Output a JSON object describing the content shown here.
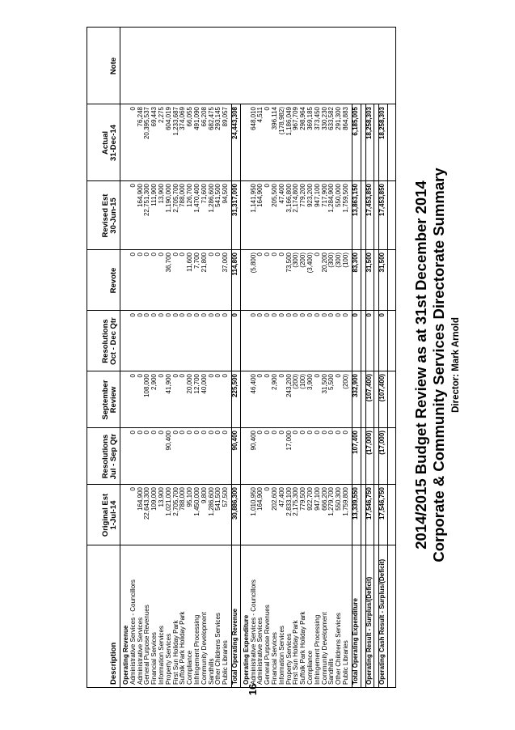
{
  "page_number": "16",
  "header": {
    "title_line1": "2014/2015 Budget Review as at 31st December 2014",
    "title_line2": "Corporate & Community Services Directorate Summary",
    "director": "Director: Mark Arnold"
  },
  "columns": [
    {
      "key": "desc",
      "label1": "",
      "label2": "Description"
    },
    {
      "key": "orig",
      "label1": "Original Est",
      "label2": "1-Jul-14"
    },
    {
      "key": "res1",
      "label1": "Resolutions",
      "label2": "Jul - Sep Qtr"
    },
    {
      "key": "sept",
      "label1": "September",
      "label2": "Review"
    },
    {
      "key": "res2",
      "label1": "Resolutions",
      "label2": "Oct - Dec Qtr"
    },
    {
      "key": "revote",
      "label1": "",
      "label2": "Revote"
    },
    {
      "key": "rev",
      "label1": "Revised Est",
      "label2": "30-Jun-15"
    },
    {
      "key": "actual",
      "label1": "Actual",
      "label2": "31-Dec-14"
    },
    {
      "key": "note",
      "label1": "",
      "label2": "Note"
    }
  ],
  "rows": [
    {
      "type": "section",
      "desc": "Operating Revenue"
    },
    {
      "desc": "Administrative Services - Councillors",
      "v": [
        "0",
        "0",
        "0",
        "0",
        "0",
        "0",
        "0"
      ]
    },
    {
      "desc": "Administrative Services",
      "v": [
        "164,900",
        "0",
        "0",
        "0",
        "0",
        "164,900",
        "76,248"
      ]
    },
    {
      "desc": "General Purpose Revenues",
      "v": [
        "22,643,300",
        "0",
        "108,000",
        "0",
        "0",
        "22,751,300",
        "20,395,537"
      ]
    },
    {
      "desc": "Financial Services",
      "v": [
        "109,000",
        "0",
        "2,900",
        "0",
        "0",
        "111,900",
        "69,443"
      ]
    },
    {
      "desc": "Information Services",
      "v": [
        "13,900",
        "0",
        "0",
        "0",
        "0",
        "13,900",
        "2,275"
      ]
    },
    {
      "desc": "Property Services",
      "v": [
        "1,021,000",
        "90,400",
        "41,900",
        "0",
        "36,700",
        "1,190,000",
        "604,019"
      ]
    },
    {
      "desc": "First Sun Holiday Park",
      "v": [
        "2,705,700",
        "0",
        "0",
        "0",
        "0",
        "2,705,700",
        "1,233,687"
      ]
    },
    {
      "desc": "Suffolk Park Holiday Park",
      "v": [
        "788,000",
        "0",
        "0",
        "0",
        "0",
        "788,000",
        "374,069"
      ]
    },
    {
      "desc": "Compliance",
      "v": [
        "95,100",
        "0",
        "20,000",
        "0",
        "11,600",
        "126,700",
        "66,055"
      ]
    },
    {
      "desc": "Infringement Processing",
      "v": [
        "1,450,000",
        "0",
        "12,700",
        "0",
        "7,700",
        "1,470,400",
        "491,090"
      ]
    },
    {
      "desc": "Community Development",
      "v": [
        "9,800",
        "0",
        "40,000",
        "0",
        "21,800",
        "71,600",
        "66,208"
      ]
    },
    {
      "desc": "Sandhills",
      "v": [
        "1,286,600",
        "0",
        "0",
        "0",
        "0",
        "1,286,600",
        "682,475"
      ]
    },
    {
      "desc": "Other Childrens Services",
      "v": [
        "541,500",
        "0",
        "0",
        "0",
        "0",
        "541,500",
        "293,145"
      ]
    },
    {
      "desc": "Public Libraries",
      "v": [
        "57,500",
        "0",
        "0",
        "0",
        "37,000",
        "94,500",
        "89,057"
      ]
    },
    {
      "type": "total",
      "desc": "Total Operating Revenue",
      "v": [
        "30,886,300",
        "90,400",
        "225,500",
        "0",
        "114,800",
        "31,317,000",
        "24,443,308"
      ]
    },
    {
      "type": "section",
      "desc": "Operating Expenditure"
    },
    {
      "desc": "Administrative Services - Councillors",
      "v": [
        "1,010,950",
        "90,400",
        "46,400",
        "0",
        "(5,800)",
        "1,141,950",
        "648,010"
      ]
    },
    {
      "desc": "Administrative Services",
      "v": [
        "164,900",
        "0",
        "0",
        "0",
        "0",
        "164,900",
        "4,511"
      ]
    },
    {
      "desc": "General Purpose Revenues",
      "v": [
        "0",
        "0",
        "0",
        "0",
        "0",
        "0",
        "0"
      ]
    },
    {
      "desc": "Financial Services",
      "v": [
        "202,600",
        "0",
        "2,900",
        "0",
        "0",
        "205,500",
        "396,114"
      ]
    },
    {
      "desc": "Information Services",
      "v": [
        "47,400",
        "0",
        "0",
        "0",
        "0",
        "47,400",
        "(178,982)"
      ]
    },
    {
      "desc": "Property Services",
      "v": [
        "2,833,100",
        "17,000",
        "243,200",
        "0",
        "73,500",
        "3,166,800",
        "1,186,049"
      ]
    },
    {
      "desc": "First Sun Holiday Park",
      "v": [
        "2,175,300",
        "0",
        "(200)",
        "0",
        "(300)",
        "2,174,800",
        "967,709"
      ]
    },
    {
      "desc": "Suffolk Park Holiday Park",
      "v": [
        "779,500",
        "0",
        "(100)",
        "0",
        "(200)",
        "779,200",
        "298,964"
      ]
    },
    {
      "desc": "Compliance",
      "v": [
        "922,700",
        "0",
        "3,900",
        "0",
        "(3,400)",
        "923,200",
        "369,185"
      ]
    },
    {
      "desc": "Infringement Processing",
      "v": [
        "947,100",
        "0",
        "0",
        "0",
        "0",
        "947,100",
        "373,450"
      ]
    },
    {
      "desc": "Community Development",
      "v": [
        "666,200",
        "0",
        "31,500",
        "0",
        "20,200",
        "717,900",
        "330,230"
      ]
    },
    {
      "desc": "Sandhills",
      "v": [
        "1,279,700",
        "0",
        "5,500",
        "0",
        "(300)",
        "1,284,900",
        "633,582"
      ]
    },
    {
      "desc": "Other Childrens Services",
      "v": [
        "550,300",
        "0",
        "0",
        "0",
        "(300)",
        "550,000",
        "291,300"
      ]
    },
    {
      "desc": "Public Libraries",
      "v": [
        "1,759,800",
        "0",
        "(200)",
        "0",
        "(100)",
        "1,759,500",
        "864,883"
      ]
    },
    {
      "type": "total",
      "desc": "Total Operating Expenditure",
      "v": [
        "13,339,550",
        "107,400",
        "332,900",
        "0",
        "83,300",
        "13,863,150",
        "6,185,005"
      ]
    },
    {
      "type": "total",
      "desc": "Operating Result - Surplus/(Deficit)",
      "v": [
        "17,546,750",
        "(17,000)",
        "(107,400)",
        "0",
        "31,500",
        "17,453,850",
        "18,258,303"
      ]
    },
    {
      "type": "total",
      "desc": "Operating Cash Result - Surplus/(Deficit)",
      "v": [
        "17,546,750",
        "(17,000)",
        "(107,400)",
        "0",
        "31,500",
        "17,453,850",
        "18,258,303"
      ]
    }
  ]
}
